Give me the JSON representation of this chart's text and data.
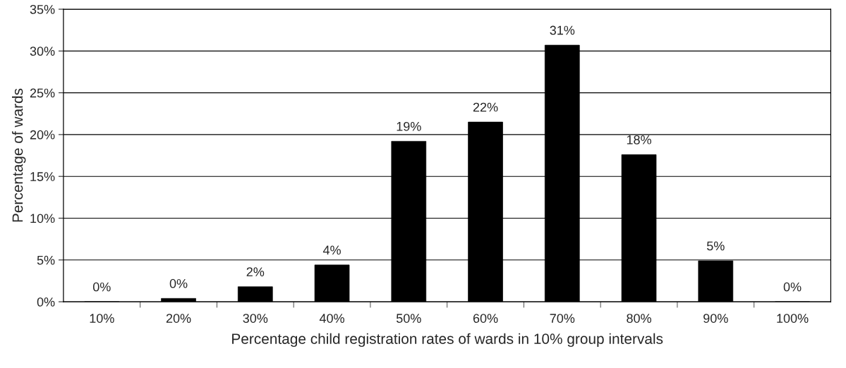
{
  "chart_data": {
    "type": "bar",
    "xlabel": "Percentage child registration rates of wards in 10% group intervals",
    "ylabel": "Percentage of wards",
    "categories": [
      "10%",
      "20%",
      "30%",
      "40%",
      "50%",
      "60%",
      "70%",
      "80%",
      "90%",
      "100%"
    ],
    "values": [
      0,
      0.4,
      1.8,
      4.4,
      19.2,
      21.5,
      30.7,
      17.6,
      4.9,
      0
    ],
    "value_labels": [
      "0%",
      "0%",
      "2%",
      "4%",
      "19%",
      "22%",
      "31%",
      "18%",
      "5%",
      "0%"
    ],
    "color": "#000000",
    "ylim": [
      0,
      35
    ],
    "yticks": [
      {
        "value": 0,
        "label": "0%"
      },
      {
        "value": 5,
        "label": "5%"
      },
      {
        "value": 10,
        "label": "10%"
      },
      {
        "value": 15,
        "label": "15%"
      },
      {
        "value": 20,
        "label": "20%"
      },
      {
        "value": 25,
        "label": "25%"
      },
      {
        "value": 30,
        "label": "30%"
      },
      {
        "value": 35,
        "label": "35%"
      }
    ],
    "grid": "y",
    "legend": false
  }
}
